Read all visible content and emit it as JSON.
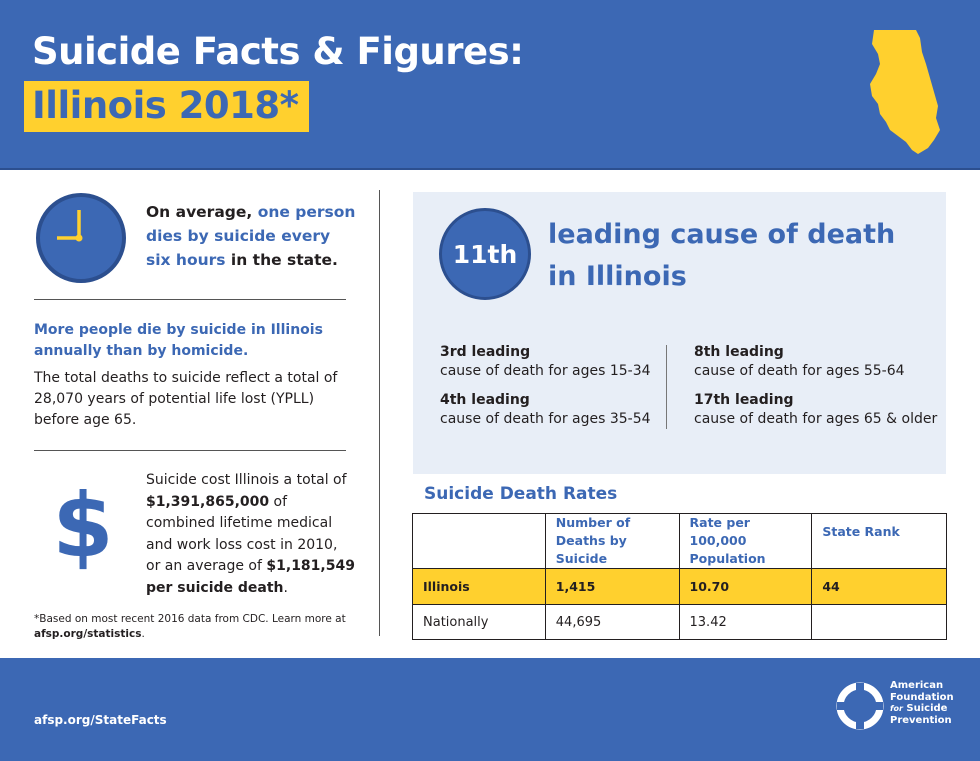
{
  "header": {
    "title_line1": "Suicide Facts & Figures:",
    "title_line2": "Illinois 2018*",
    "state_shape": "illinois-map-icon",
    "colors": {
      "brand_blue": "#3c68b4",
      "accent_yellow": "#ffd02e"
    }
  },
  "average": {
    "icon": "clock-icon",
    "prefix": "On average, ",
    "highlight": "one person dies by suicide every six hours",
    "suffix": " in the state."
  },
  "homicide": {
    "headline": "More people die by suicide in Illinois annually than by homicide.",
    "body": "The total deaths to suicide reflect a total of 28,070 years of potential life lost (YPLL) before age 65."
  },
  "cost": {
    "icon": "dollar-sign-icon",
    "symbol": "$",
    "text1": "Suicide cost Illinois a total of ",
    "amount": "$1,391,865,000",
    "text2": " of combined lifetime medical and work loss cost in 2010, or an average of ",
    "average_amount": "$1,181,549",
    "text3": " per suicide death",
    "period": "."
  },
  "footnote": {
    "text": "*Based on most recent 2016 data from CDC. Learn more at",
    "link": "afsp.org/statistics",
    "period": "."
  },
  "leading": {
    "rank": "11th",
    "headline": "leading cause of death in Illinois",
    "items": [
      {
        "rank": "3rd leading",
        "desc": "cause of death for ages 15-34"
      },
      {
        "rank": "8th leading",
        "desc": "cause of death for ages 55-64"
      },
      {
        "rank": "4th leading",
        "desc": "cause of death for ages 35-54"
      },
      {
        "rank": "17th leading",
        "desc": "cause of death for ages 65 & older"
      }
    ]
  },
  "rates": {
    "title": "Suicide Death Rates",
    "columns": [
      "",
      "Number of Deaths by Suicide",
      "Rate per 100,000 Population",
      "State Rank"
    ],
    "rows": [
      {
        "label": "Illinois",
        "deaths": "1,415",
        "rate": "10.70",
        "rank": "44"
      },
      {
        "label": "Nationally",
        "deaths": "44,695",
        "rate": "13.42",
        "rank": ""
      }
    ]
  },
  "footer": {
    "link": "afsp.org/StateFacts",
    "logo": "afsp-lifesaver-icon",
    "org_line1": "American",
    "org_line2": "Foundation",
    "org_line3_for": "for",
    "org_line3": " Suicide",
    "org_line4": "Prevention"
  }
}
